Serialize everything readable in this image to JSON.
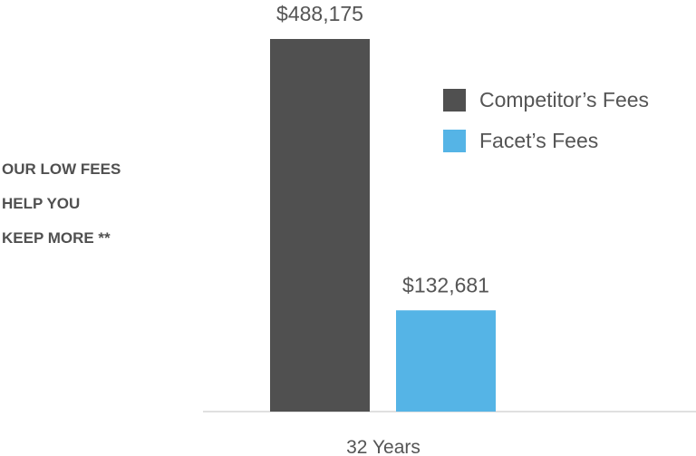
{
  "headline": [
    "OUR LOW FEES",
    "HELP YOU",
    "KEEP MORE **"
  ],
  "chart_data": {
    "type": "bar",
    "categories": [
      "32 Years"
    ],
    "series": [
      {
        "name": "Competitor’s Fees",
        "values": [
          488175
        ],
        "label": "$488,175",
        "color": "#505050"
      },
      {
        "name": "Facet’s Fees",
        "values": [
          132681
        ],
        "label": "$132,681",
        "color": "#55b4e6"
      }
    ],
    "title": "",
    "xlabel": "",
    "ylabel": "",
    "ylim": [
      0,
      488175
    ],
    "grid": false,
    "legend": "right"
  }
}
